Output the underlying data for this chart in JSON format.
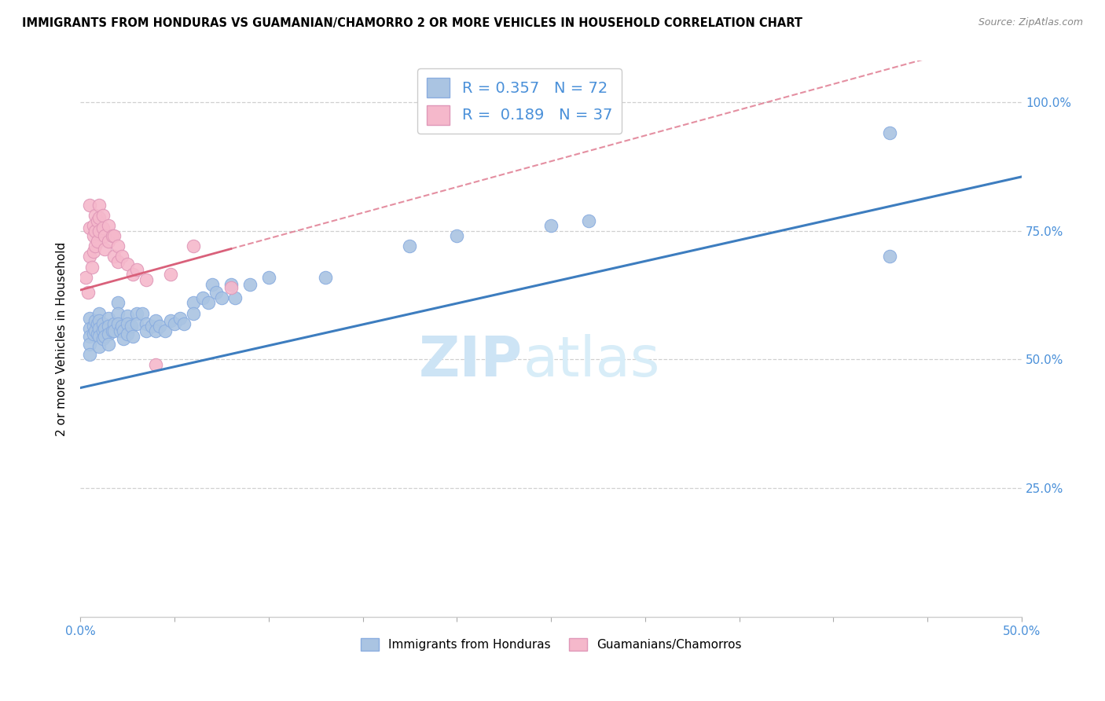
{
  "title": "IMMIGRANTS FROM HONDURAS VS GUAMANIAN/CHAMORRO 2 OR MORE VEHICLES IN HOUSEHOLD CORRELATION CHART",
  "source": "Source: ZipAtlas.com",
  "ylabel": "2 or more Vehicles in Household",
  "xlim": [
    0.0,
    0.5
  ],
  "ylim": [
    0.0,
    1.08
  ],
  "xtick_vals": [
    0.0,
    0.05,
    0.1,
    0.15,
    0.2,
    0.25,
    0.3,
    0.35,
    0.4,
    0.45,
    0.5
  ],
  "xtick_labels": [
    "0.0%",
    "",
    "",
    "",
    "",
    "",
    "",
    "",
    "",
    "",
    "50.0%"
  ],
  "ytick_vals": [
    0.25,
    0.5,
    0.75,
    1.0
  ],
  "ytick_labels": [
    "25.0%",
    "50.0%",
    "75.0%",
    "100.0%"
  ],
  "blue_color": "#aac4e2",
  "pink_color": "#f5b8cb",
  "blue_line_color": "#3d7dbf",
  "pink_line_color": "#d9607a",
  "R_blue": 0.357,
  "N_blue": 72,
  "R_pink": 0.189,
  "N_pink": 37,
  "legend_label_blue": "Immigrants from Honduras",
  "legend_label_pink": "Guamanians/Chamorros",
  "watermark_zip": "ZIP",
  "watermark_atlas": "atlas",
  "blue_intercept": 0.445,
  "blue_slope": 0.82,
  "pink_intercept": 0.635,
  "pink_slope": 1.0,
  "blue_scatter_x": [
    0.005,
    0.005,
    0.005,
    0.005,
    0.005,
    0.007,
    0.007,
    0.008,
    0.008,
    0.009,
    0.009,
    0.01,
    0.01,
    0.01,
    0.01,
    0.01,
    0.012,
    0.012,
    0.012,
    0.013,
    0.013,
    0.015,
    0.015,
    0.015,
    0.015,
    0.017,
    0.018,
    0.018,
    0.02,
    0.02,
    0.02,
    0.021,
    0.022,
    0.023,
    0.023,
    0.025,
    0.025,
    0.025,
    0.027,
    0.028,
    0.03,
    0.03,
    0.033,
    0.035,
    0.035,
    0.038,
    0.04,
    0.04,
    0.042,
    0.045,
    0.048,
    0.05,
    0.053,
    0.055,
    0.06,
    0.06,
    0.065,
    0.068,
    0.07,
    0.072,
    0.075,
    0.08,
    0.082,
    0.09,
    0.1,
    0.13,
    0.175,
    0.2,
    0.25,
    0.27,
    0.43,
    0.43
  ],
  "blue_scatter_y": [
    0.58,
    0.56,
    0.545,
    0.53,
    0.51,
    0.565,
    0.55,
    0.575,
    0.555,
    0.57,
    0.55,
    0.59,
    0.575,
    0.56,
    0.545,
    0.525,
    0.57,
    0.555,
    0.54,
    0.56,
    0.545,
    0.58,
    0.565,
    0.55,
    0.53,
    0.555,
    0.57,
    0.555,
    0.61,
    0.59,
    0.57,
    0.555,
    0.565,
    0.555,
    0.54,
    0.585,
    0.57,
    0.55,
    0.565,
    0.545,
    0.59,
    0.57,
    0.59,
    0.57,
    0.555,
    0.565,
    0.575,
    0.555,
    0.565,
    0.555,
    0.575,
    0.57,
    0.58,
    0.57,
    0.61,
    0.59,
    0.62,
    0.61,
    0.645,
    0.63,
    0.62,
    0.645,
    0.62,
    0.645,
    0.66,
    0.66,
    0.72,
    0.74,
    0.76,
    0.77,
    0.94,
    0.7
  ],
  "pink_scatter_x": [
    0.003,
    0.004,
    0.005,
    0.005,
    0.005,
    0.006,
    0.007,
    0.007,
    0.007,
    0.008,
    0.008,
    0.008,
    0.009,
    0.009,
    0.01,
    0.01,
    0.01,
    0.012,
    0.012,
    0.013,
    0.013,
    0.015,
    0.015,
    0.017,
    0.018,
    0.018,
    0.02,
    0.02,
    0.022,
    0.025,
    0.028,
    0.03,
    0.035,
    0.04,
    0.048,
    0.06,
    0.08
  ],
  "pink_scatter_y": [
    0.66,
    0.63,
    0.8,
    0.755,
    0.7,
    0.68,
    0.76,
    0.74,
    0.71,
    0.78,
    0.75,
    0.72,
    0.77,
    0.73,
    0.8,
    0.775,
    0.75,
    0.78,
    0.755,
    0.74,
    0.715,
    0.76,
    0.73,
    0.74,
    0.74,
    0.7,
    0.72,
    0.69,
    0.7,
    0.685,
    0.665,
    0.675,
    0.655,
    0.49,
    0.665,
    0.72,
    0.64
  ]
}
